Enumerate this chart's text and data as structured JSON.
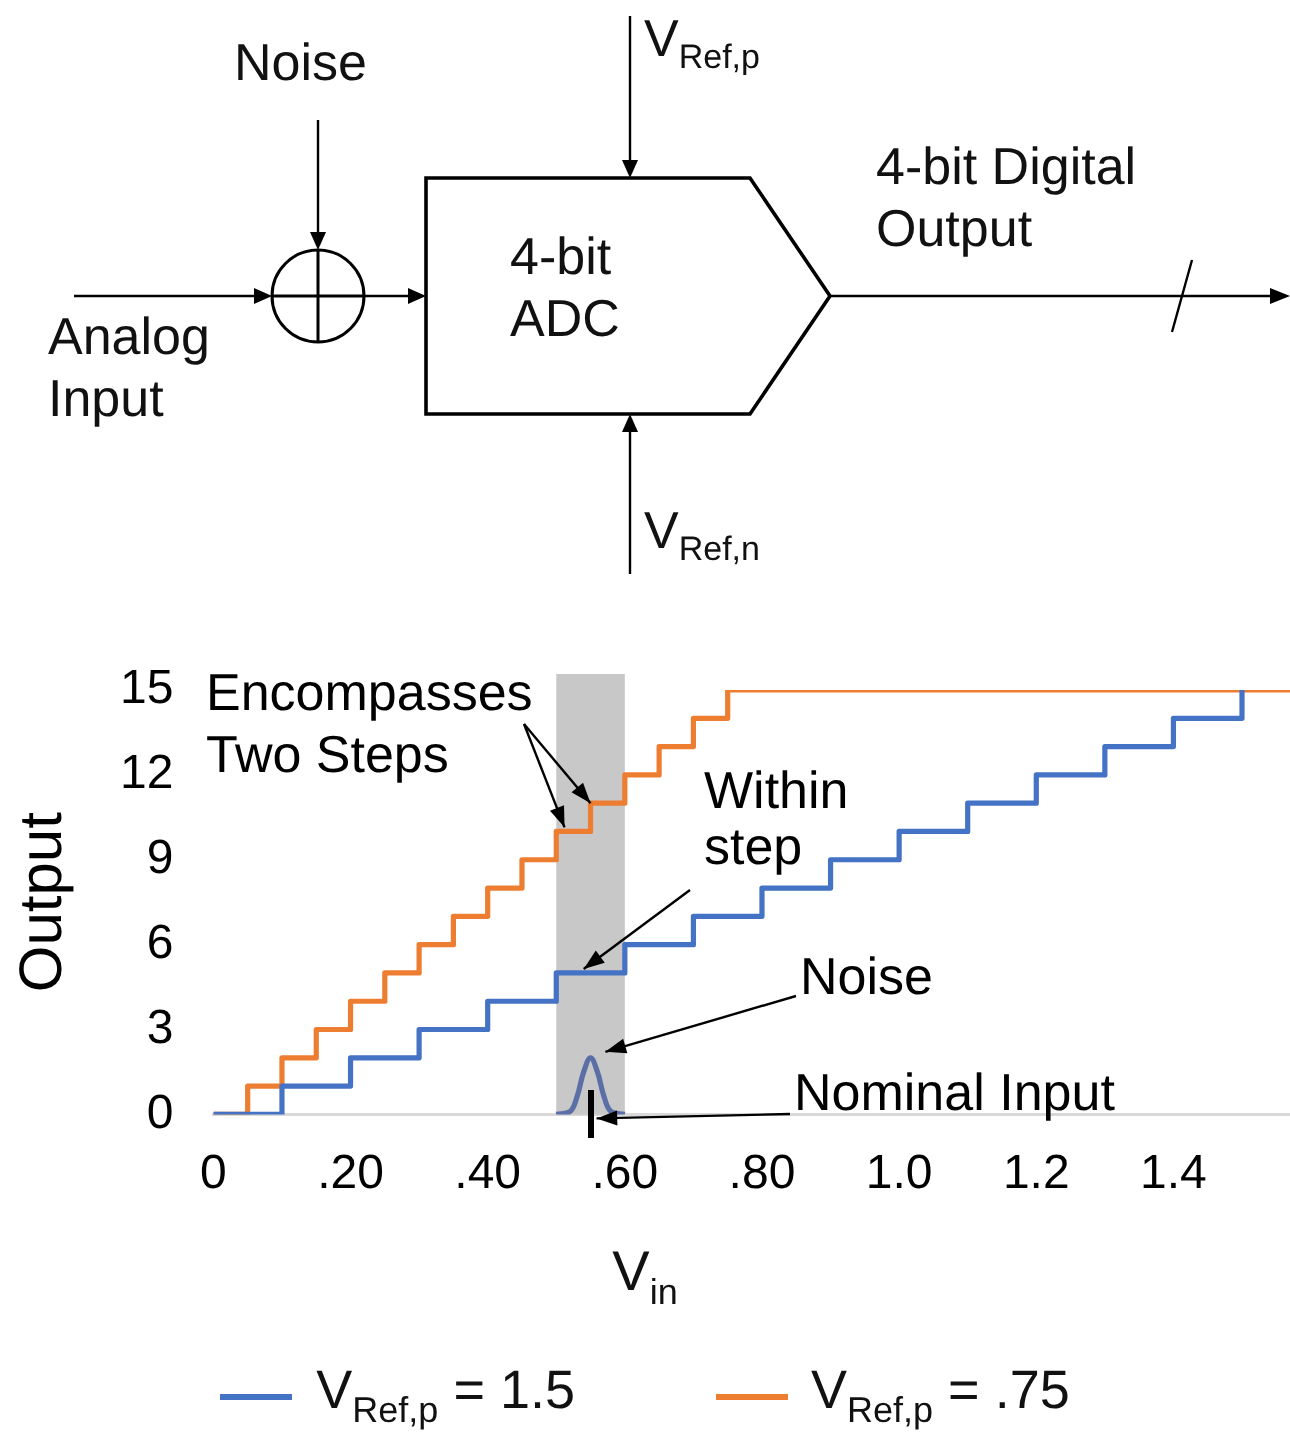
{
  "chart_data": [
    {
      "type": "other",
      "annotations": [
        "Noise",
        "V$_{Ref,p}$",
        "4-bit Digital Output",
        "Analog Input",
        "4-bit ADC",
        "V$_{Ref,n}$"
      ]
    },
    {
      "type": "step",
      "xlabel": "V$_{in}$",
      "ylabel": "Output",
      "xlim": [
        0,
        1.57
      ],
      "ylim": [
        0,
        15
      ],
      "xticks": [
        {
          "value": 0,
          "label": "0"
        },
        {
          "value": 0.2,
          "label": ".20"
        },
        {
          "value": 0.4,
          "label": ".40"
        },
        {
          "value": 0.6,
          "label": ".60"
        },
        {
          "value": 0.8,
          "label": ".80"
        },
        {
          "value": 1.0,
          "label": "1.0"
        },
        {
          "value": 1.2,
          "label": "1.2"
        },
        {
          "value": 1.4,
          "label": "1.4"
        }
      ],
      "yticks": [
        0,
        3,
        6,
        9,
        12,
        15
      ],
      "grid": false,
      "legend": "bottom",
      "marker": "none",
      "line_style": "solid",
      "bands": [
        {
          "axis": "x",
          "from": 0.5,
          "to": 0.6,
          "color": "#c8c8c8"
        }
      ],
      "annotations": [
        {
          "text": "Encompasses Two Steps",
          "x": 0.55,
          "y": 10.5
        },
        {
          "text": "Within step",
          "x": 0.54,
          "y": 5
        },
        {
          "text": "Noise",
          "x": 0.56,
          "y": 2
        },
        {
          "text": "Nominal Input",
          "x": 0.55,
          "y": 0
        }
      ],
      "series": [
        {
          "name": "V$_{Ref,p}$ = 1.5",
          "color": "#4472c4",
          "x": [
            0,
            0.1,
            0.2,
            0.3,
            0.4,
            0.5,
            0.6,
            0.7,
            0.8,
            0.9,
            1.0,
            1.1,
            1.2,
            1.3,
            1.4,
            1.5
          ],
          "values": [
            0,
            1,
            2,
            3,
            4,
            5,
            6,
            7,
            8,
            9,
            10,
            11,
            12,
            13,
            14,
            15
          ]
        },
        {
          "name": "V$_{Ref,p}$ =  .75",
          "color": "#ed7d31",
          "x": [
            0,
            0.05,
            0.1,
            0.15,
            0.2,
            0.25,
            0.3,
            0.35,
            0.4,
            0.45,
            0.5,
            0.55,
            0.6,
            0.65,
            0.7,
            0.75,
            1.57
          ],
          "values": [
            0,
            1,
            2,
            3,
            4,
            5,
            6,
            7,
            8,
            9,
            10,
            11,
            12,
            13,
            14,
            15,
            15
          ]
        },
        {
          "type": "line",
          "color": "#5b6fa6",
          "x": [
            0.5,
            0.52,
            0.53,
            0.54,
            0.55,
            0.56,
            0.57,
            0.58,
            0.6
          ],
          "values": [
            0,
            0.1,
            0.6,
            1.5,
            2,
            1.5,
            0.6,
            0.1,
            0
          ]
        }
      ]
    }
  ]
}
